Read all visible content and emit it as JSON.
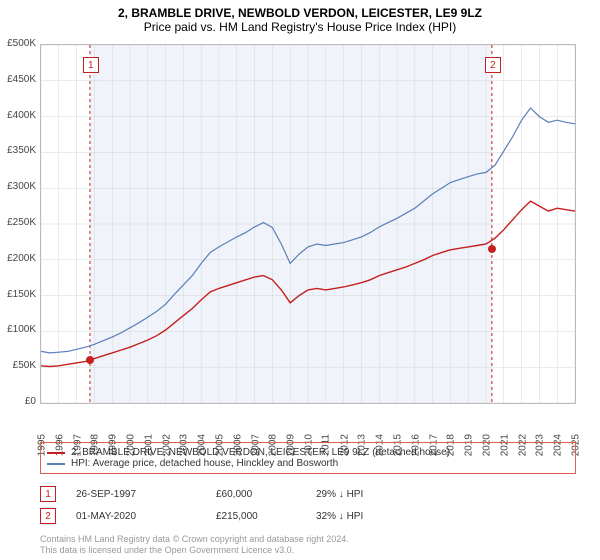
{
  "title_line1": "2, BRAMBLE DRIVE, NEWBOLD VERDON, LEICESTER, LE9 9LZ",
  "title_line2": "Price paid vs. HM Land Registry's House Price Index (HPI)",
  "chart": {
    "type": "line",
    "background_color": "#ffffff",
    "plot_shade_color": "#f0f4fa",
    "grid_color": "#d5d5d5",
    "border_color": "#bbbbbb",
    "y": {
      "min": 0,
      "max": 500000,
      "tick_step": 50000,
      "ticks": [
        "£0",
        "£50K",
        "£100K",
        "£150K",
        "£200K",
        "£250K",
        "£300K",
        "£350K",
        "£400K",
        "£450K",
        "£500K"
      ]
    },
    "x": {
      "min": 1995,
      "max": 2025,
      "ticks": [
        1995,
        1996,
        1997,
        1998,
        1999,
        2000,
        2001,
        2002,
        2003,
        2004,
        2005,
        2006,
        2007,
        2008,
        2009,
        2010,
        2011,
        2012,
        2013,
        2014,
        2015,
        2016,
        2017,
        2018,
        2019,
        2020,
        2021,
        2022,
        2023,
        2024,
        2025
      ]
    },
    "shade_start_year": 1997.75,
    "shade_end_year": 2020.33,
    "marker_dash_color": "#c51f1f",
    "series": [
      {
        "name": "hpi",
        "color": "#5b7fb8",
        "width": 1.2,
        "points": [
          [
            1995.0,
            72000
          ],
          [
            1995.5,
            70000
          ],
          [
            1996.0,
            71000
          ],
          [
            1996.5,
            72000
          ],
          [
            1997.0,
            75000
          ],
          [
            1997.5,
            78000
          ],
          [
            1998.0,
            82000
          ],
          [
            1998.5,
            87000
          ],
          [
            1999.0,
            92000
          ],
          [
            1999.5,
            98000
          ],
          [
            2000.0,
            105000
          ],
          [
            2000.5,
            112000
          ],
          [
            2001.0,
            120000
          ],
          [
            2001.5,
            128000
          ],
          [
            2002.0,
            138000
          ],
          [
            2002.5,
            152000
          ],
          [
            2003.0,
            165000
          ],
          [
            2003.5,
            178000
          ],
          [
            2004.0,
            195000
          ],
          [
            2004.5,
            210000
          ],
          [
            2005.0,
            218000
          ],
          [
            2005.5,
            225000
          ],
          [
            2006.0,
            232000
          ],
          [
            2006.5,
            238000
          ],
          [
            2007.0,
            246000
          ],
          [
            2007.5,
            252000
          ],
          [
            2008.0,
            245000
          ],
          [
            2008.5,
            222000
          ],
          [
            2009.0,
            195000
          ],
          [
            2009.5,
            208000
          ],
          [
            2010.0,
            218000
          ],
          [
            2010.5,
            222000
          ],
          [
            2011.0,
            220000
          ],
          [
            2011.5,
            222000
          ],
          [
            2012.0,
            224000
          ],
          [
            2012.5,
            228000
          ],
          [
            2013.0,
            232000
          ],
          [
            2013.5,
            238000
          ],
          [
            2014.0,
            246000
          ],
          [
            2014.5,
            252000
          ],
          [
            2015.0,
            258000
          ],
          [
            2015.5,
            265000
          ],
          [
            2016.0,
            272000
          ],
          [
            2016.5,
            282000
          ],
          [
            2017.0,
            292000
          ],
          [
            2017.5,
            300000
          ],
          [
            2018.0,
            308000
          ],
          [
            2018.5,
            312000
          ],
          [
            2019.0,
            316000
          ],
          [
            2019.5,
            320000
          ],
          [
            2020.0,
            322000
          ],
          [
            2020.5,
            332000
          ],
          [
            2021.0,
            352000
          ],
          [
            2021.5,
            372000
          ],
          [
            2022.0,
            395000
          ],
          [
            2022.5,
            412000
          ],
          [
            2023.0,
            400000
          ],
          [
            2023.5,
            392000
          ],
          [
            2024.0,
            395000
          ],
          [
            2024.5,
            392000
          ],
          [
            2025.0,
            390000
          ]
        ]
      },
      {
        "name": "price_paid",
        "color": "#c51f1f",
        "width": 1.4,
        "points": [
          [
            1995.0,
            52000
          ],
          [
            1995.5,
            51000
          ],
          [
            1996.0,
            52000
          ],
          [
            1996.5,
            54000
          ],
          [
            1997.0,
            56000
          ],
          [
            1997.5,
            58000
          ],
          [
            1998.0,
            62000
          ],
          [
            1998.5,
            66000
          ],
          [
            1999.0,
            70000
          ],
          [
            1999.5,
            74000
          ],
          [
            2000.0,
            78000
          ],
          [
            2000.5,
            83000
          ],
          [
            2001.0,
            88000
          ],
          [
            2001.5,
            94000
          ],
          [
            2002.0,
            102000
          ],
          [
            2002.5,
            112000
          ],
          [
            2003.0,
            122000
          ],
          [
            2003.5,
            132000
          ],
          [
            2004.0,
            144000
          ],
          [
            2004.5,
            155000
          ],
          [
            2005.0,
            160000
          ],
          [
            2005.5,
            164000
          ],
          [
            2006.0,
            168000
          ],
          [
            2006.5,
            172000
          ],
          [
            2007.0,
            176000
          ],
          [
            2007.5,
            178000
          ],
          [
            2008.0,
            172000
          ],
          [
            2008.5,
            158000
          ],
          [
            2009.0,
            140000
          ],
          [
            2009.5,
            150000
          ],
          [
            2010.0,
            158000
          ],
          [
            2010.5,
            160000
          ],
          [
            2011.0,
            158000
          ],
          [
            2011.5,
            160000
          ],
          [
            2012.0,
            162000
          ],
          [
            2012.5,
            165000
          ],
          [
            2013.0,
            168000
          ],
          [
            2013.5,
            172000
          ],
          [
            2014.0,
            178000
          ],
          [
            2014.5,
            182000
          ],
          [
            2015.0,
            186000
          ],
          [
            2015.5,
            190000
          ],
          [
            2016.0,
            195000
          ],
          [
            2016.5,
            200000
          ],
          [
            2017.0,
            206000
          ],
          [
            2017.5,
            210000
          ],
          [
            2018.0,
            214000
          ],
          [
            2018.5,
            216000
          ],
          [
            2019.0,
            218000
          ],
          [
            2019.5,
            220000
          ],
          [
            2020.0,
            222000
          ],
          [
            2020.5,
            230000
          ],
          [
            2021.0,
            242000
          ],
          [
            2021.5,
            256000
          ],
          [
            2022.0,
            270000
          ],
          [
            2022.5,
            282000
          ],
          [
            2023.0,
            275000
          ],
          [
            2023.5,
            268000
          ],
          [
            2024.0,
            272000
          ],
          [
            2024.5,
            270000
          ],
          [
            2025.0,
            268000
          ]
        ]
      }
    ],
    "sale_points": [
      {
        "year": 1997.74,
        "value": 60000,
        "color": "#c51f1f"
      },
      {
        "year": 2020.33,
        "value": 215000,
        "color": "#c51f1f"
      }
    ]
  },
  "legend": {
    "border_color": "#e0604d",
    "rows": [
      {
        "color": "#c51f1f",
        "label": "2, BRAMBLE DRIVE, NEWBOLD VERDON, LEICESTER, LE9 9LZ (detached house)"
      },
      {
        "color": "#5b7fb8",
        "label": "HPI: Average price, detached house, Hinckley and Bosworth"
      }
    ]
  },
  "transactions": [
    {
      "num": "1",
      "box_color": "#c51f1f",
      "date": "26-SEP-1997",
      "price": "£60,000",
      "hpi": "29% ↓ HPI"
    },
    {
      "num": "2",
      "box_color": "#c51f1f",
      "date": "01-MAY-2020",
      "price": "£215,000",
      "hpi": "32% ↓ HPI"
    }
  ],
  "footer_line1": "Contains HM Land Registry data © Crown copyright and database right 2024.",
  "footer_line2": "This data is licensed under the Open Government Licence v3.0."
}
